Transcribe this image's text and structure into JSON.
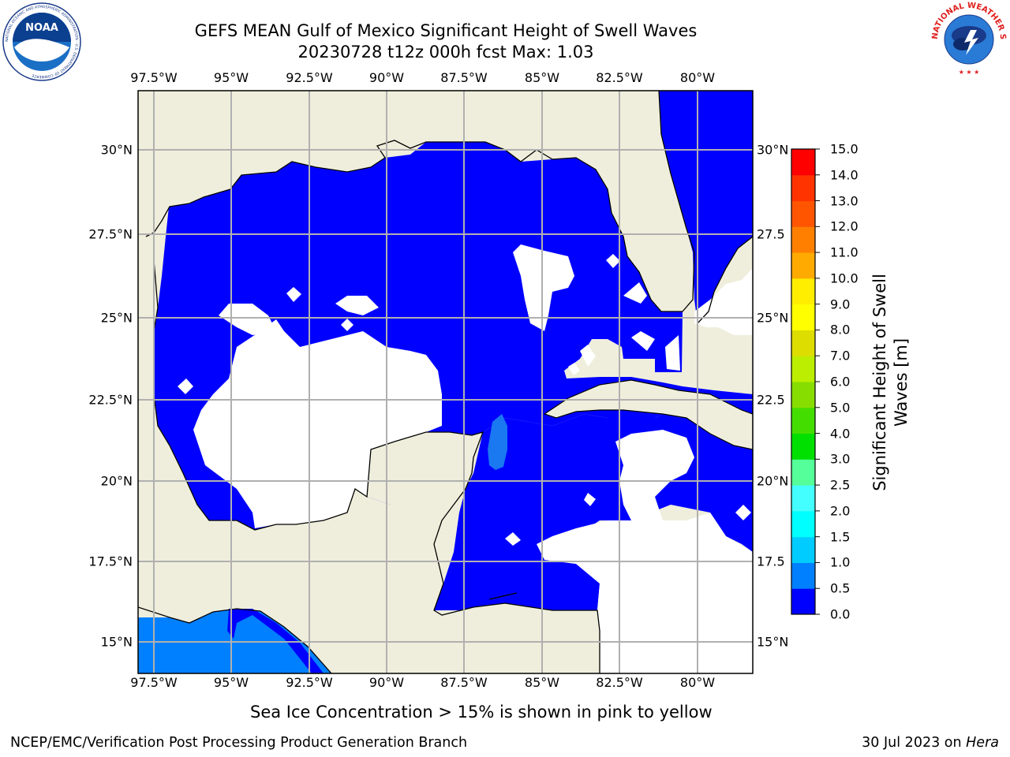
{
  "header": {
    "title_line1": "GEFS MEAN Gulf of Mexico Significant Height of Swell Waves",
    "title_line2": "20230728 t12z 000h fcst   Max: 1.03"
  },
  "logos": {
    "noaa": {
      "text": "NOAA",
      "ring_text": "NATIONAL OCEANIC AND ATMOSPHERIC ADMINISTRATION · U.S. DEPARTMENT OF COMMERCE"
    },
    "nws": {
      "ring_text": "NATIONAL WEATHER SERVICE"
    }
  },
  "map": {
    "longitude_labels": [
      "97.5°W",
      "95°W",
      "92.5°W",
      "90°W",
      "87.5°W",
      "85°W",
      "82.5°W",
      "80°W"
    ],
    "latitude_labels": [
      "30°N",
      "27.5°N",
      "25°N",
      "22.5°N",
      "20°N",
      "17.5°N",
      "15°N"
    ],
    "latitude_labels_right": [
      "30°N",
      "27.5",
      "25°N",
      "22.5",
      "20°N",
      "17.5",
      "15°N"
    ],
    "colors": {
      "land": "#efeedc",
      "ocean_low": "#0000ff",
      "ocean_mid": "#0080ff",
      "ocean_high": "#00c0ff",
      "grid": "#b0b0b0",
      "coast": "#000000"
    }
  },
  "colorbar": {
    "title_line1": "Significant Height of Swell",
    "title_line2": "Waves [m]",
    "tick_labels": [
      "0.0",
      "0.5",
      "1.0",
      "1.5",
      "2.0",
      "2.5",
      "3.0",
      "4.0",
      "5.0",
      "6.0",
      "7.0",
      "8.0",
      "9.0",
      "10.0",
      "11.0",
      "12.0",
      "13.0",
      "14.0",
      "15.0"
    ],
    "colors": [
      "#0000ff",
      "#0080ff",
      "#00ccff",
      "#00ffff",
      "#44ffff",
      "#99ffff",
      "#55ff99",
      "#00e000",
      "#44dd00",
      "#88dd00",
      "#bbee00",
      "#dddd00",
      "#ffff00",
      "#ffee00",
      "#ffcc00",
      "#ffaa00",
      "#ff8000",
      "#ff5500",
      "#ff3300",
      "#ff0000"
    ]
  },
  "footnote": "Sea Ice Concentration > 15% is shown in pink to yellow",
  "footer": {
    "left": "NCEP/EMC/Verification Post Processing Product Generation Branch",
    "right_date": "30 Jul 2023 on ",
    "right_machine": "Hera"
  }
}
